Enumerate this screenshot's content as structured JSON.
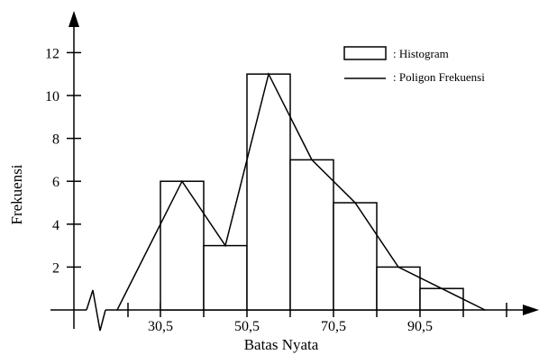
{
  "chart_data": {
    "type": "bar",
    "chart_subtypes": [
      "histogram",
      "frequency polygon"
    ],
    "ylabel": "Frekuensi",
    "xlabel": "Batas Nyata",
    "bin_edges": [
      30.5,
      40.5,
      50.5,
      60.5,
      70.5,
      80.5,
      90.5,
      100.5
    ],
    "values": [
      6,
      3,
      11,
      7,
      5,
      2,
      1
    ],
    "polygon": {
      "x": [
        20.5,
        35.5,
        45.5,
        55.5,
        65.5,
        75.5,
        85.5,
        95.5,
        105.5
      ],
      "y": [
        0,
        6,
        3,
        11,
        7,
        5,
        2,
        1,
        0
      ]
    },
    "x_tick_labels": [
      "30,5",
      "50,5",
      "70,5",
      "90,5"
    ],
    "x_tick_label_values": [
      30.5,
      50.5,
      70.5,
      90.5
    ],
    "y_ticks": [
      2,
      4,
      6,
      8,
      10,
      12
    ],
    "ylim": [
      0,
      12
    ],
    "x_axis_break": true,
    "grid": false,
    "legend": {
      "placement": "top-right",
      "items": [
        {
          "symbol": "box",
          "label": ": Histogram"
        },
        {
          "symbol": "line",
          "label": ": Poligon Frekuensi"
        }
      ]
    },
    "colors": {
      "bars_fill": "#ffffff",
      "stroke": "#000000"
    }
  }
}
